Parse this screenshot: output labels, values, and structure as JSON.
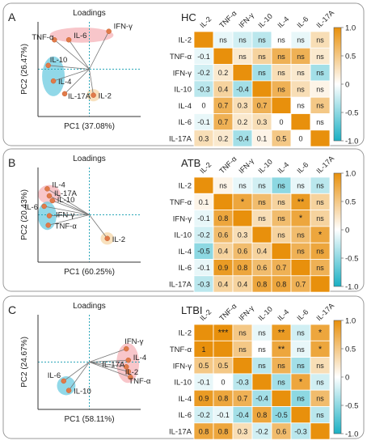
{
  "colorbar": {
    "ticks": [
      "1.0",
      "0.5",
      "0",
      "-0.5",
      "-1.0"
    ],
    "high_color": "#e8900c",
    "low_color": "#1ab0c4",
    "mid_color": "#ffffff"
  },
  "panels": [
    {
      "letter": "A",
      "group": "HC",
      "chart_data": [
        {
          "type": "scatter",
          "title": "Loadings",
          "xlabel": "PC1 (37.08%)",
          "ylabel": "PC2 (26.47%)",
          "xlim": [
            -1,
            1
          ],
          "ylim": [
            -1,
            1
          ],
          "points": [
            {
              "label": "IFN-γ",
              "x": 0.38,
              "y": 0.8
            },
            {
              "label": "TNF-α",
              "x": -0.68,
              "y": 0.62
            },
            {
              "label": "IL-6",
              "x": -0.4,
              "y": 0.62
            },
            {
              "label": "IL-10",
              "x": -0.8,
              "y": 0.08
            },
            {
              "label": "IL-4",
              "x": -0.7,
              "y": -0.25
            },
            {
              "label": "IL-17A",
              "x": -0.48,
              "y": -0.52
            },
            {
              "label": "IL-2",
              "x": 0.08,
              "y": -0.55
            }
          ]
        },
        {
          "type": "heatmap",
          "labels": [
            "IL-2",
            "TNF-α",
            "IFN-γ",
            "IL-10",
            "IL-4",
            "IL-6",
            "IL-17A"
          ],
          "lower": [
            [],
            [
              -0.1
            ],
            [
              -0.2,
              0.2
            ],
            [
              -0.3,
              0.4,
              -0.4
            ],
            [
              0,
              0.7,
              0.3,
              0.7
            ],
            [
              -0.1,
              0.7,
              0.2,
              0.3,
              0
            ],
            [
              0.3,
              0.2,
              -0.4,
              0.1,
              0.5,
              0
            ]
          ],
          "upper": [
            [
              "ns",
              "ns",
              "ns",
              "ns",
              "ns",
              "ns"
            ],
            [
              "ns",
              "ns",
              "ns",
              "ns",
              "ns"
            ],
            [
              "ns",
              "ns",
              "ns",
              "ns"
            ],
            [
              "ns",
              "ns",
              "ns"
            ],
            [
              "ns",
              "ns"
            ],
            [
              "ns"
            ]
          ]
        }
      ]
    },
    {
      "letter": "B",
      "group": "ATB",
      "chart_data": [
        {
          "type": "scatter",
          "title": "Loadings",
          "xlabel": "PC1 (60.25%)",
          "ylabel": "PC2 (20.43%)",
          "xlim": [
            -1,
            1
          ],
          "ylim": [
            -1,
            1
          ],
          "points": [
            {
              "label": "IL-4",
              "x": -0.82,
              "y": 0.55
            },
            {
              "label": "IL-17A",
              "x": -0.78,
              "y": 0.4
            },
            {
              "label": "IL-10",
              "x": -0.72,
              "y": 0.3
            },
            {
              "label": "IL-6",
              "x": -0.88,
              "y": 0.18
            },
            {
              "label": "IFN-γ",
              "x": -0.78,
              "y": -0.02
            },
            {
              "label": "TNF-α",
              "x": -0.8,
              "y": -0.22
            },
            {
              "label": "IL-2",
              "x": 0.35,
              "y": -0.5
            }
          ]
        },
        {
          "type": "heatmap",
          "labels": [
            "IL-2",
            "TNF-α",
            "IFN-γ",
            "IL-10",
            "IL-4",
            "IL-6",
            "IL-17A"
          ],
          "lower": [
            [],
            [
              0.1
            ],
            [
              -0.1,
              0.8
            ],
            [
              -0.2,
              0.6,
              0.3
            ],
            [
              -0.5,
              0.4,
              0.6,
              0.4
            ],
            [
              -0.1,
              0.9,
              0.8,
              0.6,
              0.7
            ],
            [
              -0.3,
              0.4,
              0.4,
              0.8,
              0.8,
              0.7
            ]
          ],
          "upper": [
            [
              "ns",
              "ns",
              "ns",
              "ns",
              "ns",
              "ns"
            ],
            [
              "*",
              "ns",
              "ns",
              "**",
              "ns"
            ],
            [
              "ns",
              "ns",
              "*",
              "ns"
            ],
            [
              "ns",
              "ns",
              "*"
            ],
            [
              "ns",
              "ns"
            ],
            [
              "ns"
            ]
          ]
        }
      ]
    },
    {
      "letter": "C",
      "group": "LTBI",
      "chart_data": [
        {
          "type": "scatter",
          "title": "Loadings",
          "xlabel": "PC1 (58.11%)",
          "ylabel": "PC2 (24.67%)",
          "xlim": [
            -1,
            1
          ],
          "ylim": [
            -1,
            1
          ],
          "points": [
            {
              "label": "IFN-γ",
              "x": 0.72,
              "y": 0.28
            },
            {
              "label": "IL-4",
              "x": 0.76,
              "y": 0.04
            },
            {
              "label": "IL-17A",
              "x": 0.72,
              "y": -0.1
            },
            {
              "label": "IL-2",
              "x": 0.76,
              "y": -0.2
            },
            {
              "label": "TNF-α",
              "x": 0.8,
              "y": -0.32
            },
            {
              "label": "IL-6",
              "x": -0.5,
              "y": -0.4
            },
            {
              "label": "IL-10",
              "x": -0.4,
              "y": -0.6
            }
          ]
        },
        {
          "type": "heatmap",
          "labels": [
            "IL-2",
            "TNF-α",
            "IFN-γ",
            "IL-10",
            "IL-4",
            "IL-6",
            "IL-17A"
          ],
          "lower": [
            [],
            [
              1
            ],
            [
              0.5,
              0.5
            ],
            [
              -0.1,
              0,
              -0.3
            ],
            [
              0.9,
              0.8,
              0.7,
              -0.4
            ],
            [
              -0.2,
              -0.1,
              -0.4,
              0.8,
              -0.5
            ],
            [
              0.8,
              0.8,
              0.3,
              -0.2,
              0.6,
              -0.3
            ]
          ],
          "upper": [
            [
              "***",
              "ns",
              "ns",
              "**",
              "ns",
              "*"
            ],
            [
              "ns",
              "ns",
              "**",
              "ns",
              "*"
            ],
            [
              "ns",
              "ns",
              "ns",
              "ns"
            ],
            [
              "ns",
              "*",
              "ns"
            ],
            [
              "ns",
              "ns"
            ],
            [
              "ns"
            ]
          ]
        }
      ]
    }
  ]
}
